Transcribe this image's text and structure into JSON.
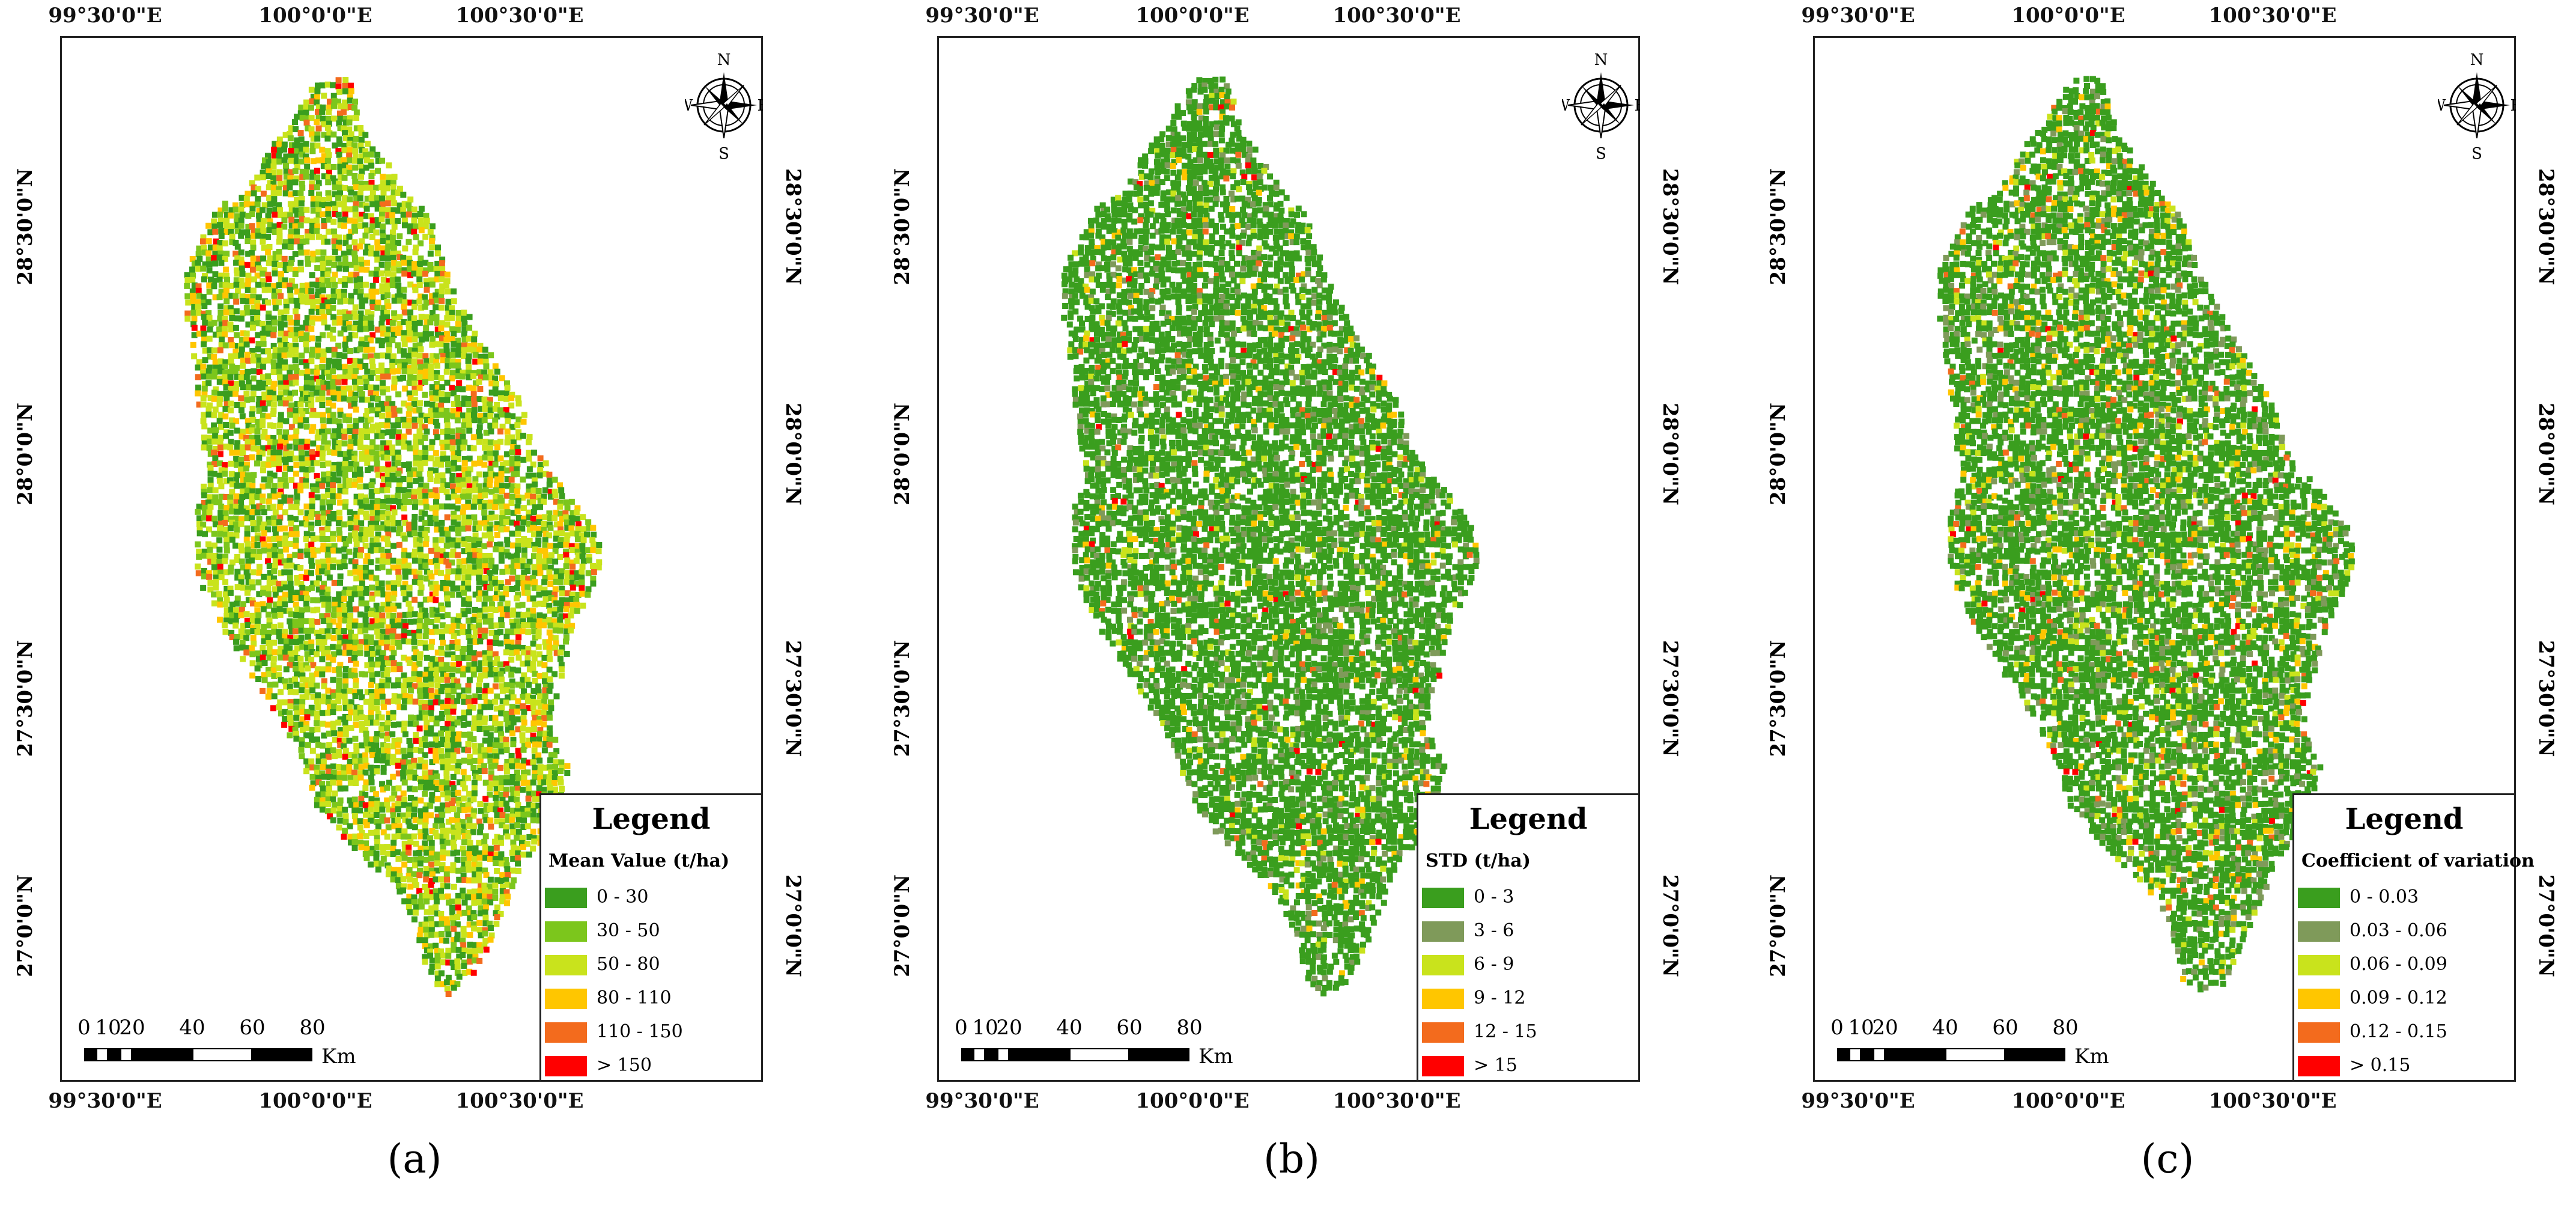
{
  "panels": [
    {
      "caption": "(a)",
      "legend_title": "Legend",
      "legend_subtitle": "Mean Value (t/ha)",
      "legend_items": [
        {
          "label": "0 - 30",
          "color": "#3a9e1e"
        },
        {
          "label": "30 - 50",
          "color": "#7cc61c"
        },
        {
          "label": "50 - 80",
          "color": "#c9e31c"
        },
        {
          "label": "80 - 110",
          "color": "#ffc600"
        },
        {
          "label": "110 - 150",
          "color": "#f36b1d"
        },
        {
          "label": "> 150",
          "color": "#ff0000"
        }
      ],
      "weights": [
        0.28,
        0.22,
        0.3,
        0.12,
        0.05,
        0.03
      ]
    },
    {
      "caption": "(b)",
      "legend_title": "Legend",
      "legend_subtitle": "STD (t/ha)",
      "legend_items": [
        {
          "label": "0 - 3",
          "color": "#3a9e1e"
        },
        {
          "label": "3 - 6",
          "color": "#7f9a5a"
        },
        {
          "label": "6 - 9",
          "color": "#c9e31c"
        },
        {
          "label": "9 - 12",
          "color": "#ffc600"
        },
        {
          "label": "12 - 15",
          "color": "#f36b1d"
        },
        {
          "label": "> 15",
          "color": "#ff0000"
        }
      ],
      "weights": [
        0.8,
        0.1,
        0.04,
        0.03,
        0.02,
        0.01
      ]
    },
    {
      "caption": "(c)",
      "legend_title": "Legend",
      "legend_subtitle": "Coefficient of variation",
      "legend_items": [
        {
          "label": "0 - 0.03",
          "color": "#3a9e1e"
        },
        {
          "label": "0.03 - 0.06",
          "color": "#7f9a5a"
        },
        {
          "label": "0.06 - 0.09",
          "color": "#c9e31c"
        },
        {
          "label": "0.09 - 0.12",
          "color": "#ffc600"
        },
        {
          "label": "0.12 - 0.15",
          "color": "#f36b1d"
        },
        {
          "label": "> 0.15",
          "color": "#ff0000"
        }
      ],
      "weights": [
        0.72,
        0.12,
        0.07,
        0.05,
        0.03,
        0.01
      ]
    }
  ],
  "top_labels": [
    "99°30'0\"E",
    "100°0'0\"E",
    "100°30'0\"E"
  ],
  "bottom_labels": [
    "99°30'0\"E",
    "100°0'0\"E",
    "100°30'0\"E"
  ],
  "lat_labels": [
    "28°30'0\"N",
    "28°0'0\"N",
    "27°30'0\"N",
    "27°0'0\"N"
  ],
  "scale": {
    "ticks": [
      "0",
      "10",
      "20",
      "40",
      "60",
      "80"
    ],
    "unit": "Km"
  },
  "compass": {
    "n": "N",
    "s": "S",
    "e": "E",
    "w": "W"
  }
}
